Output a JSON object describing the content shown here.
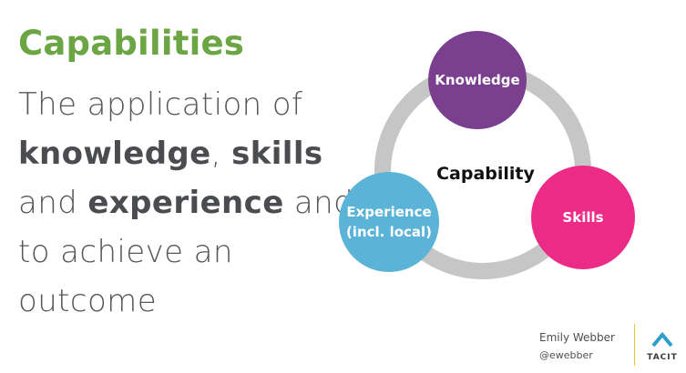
{
  "slide": {
    "title": "Capabilities",
    "body": {
      "line1": "The application of",
      "line2_bold1": "knowledge",
      "line2_sep": ", ",
      "line2_bold2": "skills",
      "line3_lead": "and ",
      "line3_bold": "experience",
      "line3_tail": " and",
      "line4": "to achieve an",
      "line5": "outcome"
    }
  },
  "diagram": {
    "center": "Capability",
    "nodes": {
      "knowledge": "Knowledge",
      "skills": "Skills",
      "experience_line1": "Experience",
      "experience_line2": "(incl. local)"
    },
    "colors": {
      "ring": "#c6c6c6",
      "knowledge": "#7b3f8f",
      "skills": "#ec2b87",
      "experience": "#5bb3d7"
    }
  },
  "footer": {
    "author": "Emily Webber",
    "handle": "@ewebber",
    "logo_text": "TACIT",
    "logo_icon": "tacit-chevron-icon"
  },
  "colors": {
    "title": "#6ca543",
    "text": "#55575b",
    "accent_line": "#e8c832"
  }
}
